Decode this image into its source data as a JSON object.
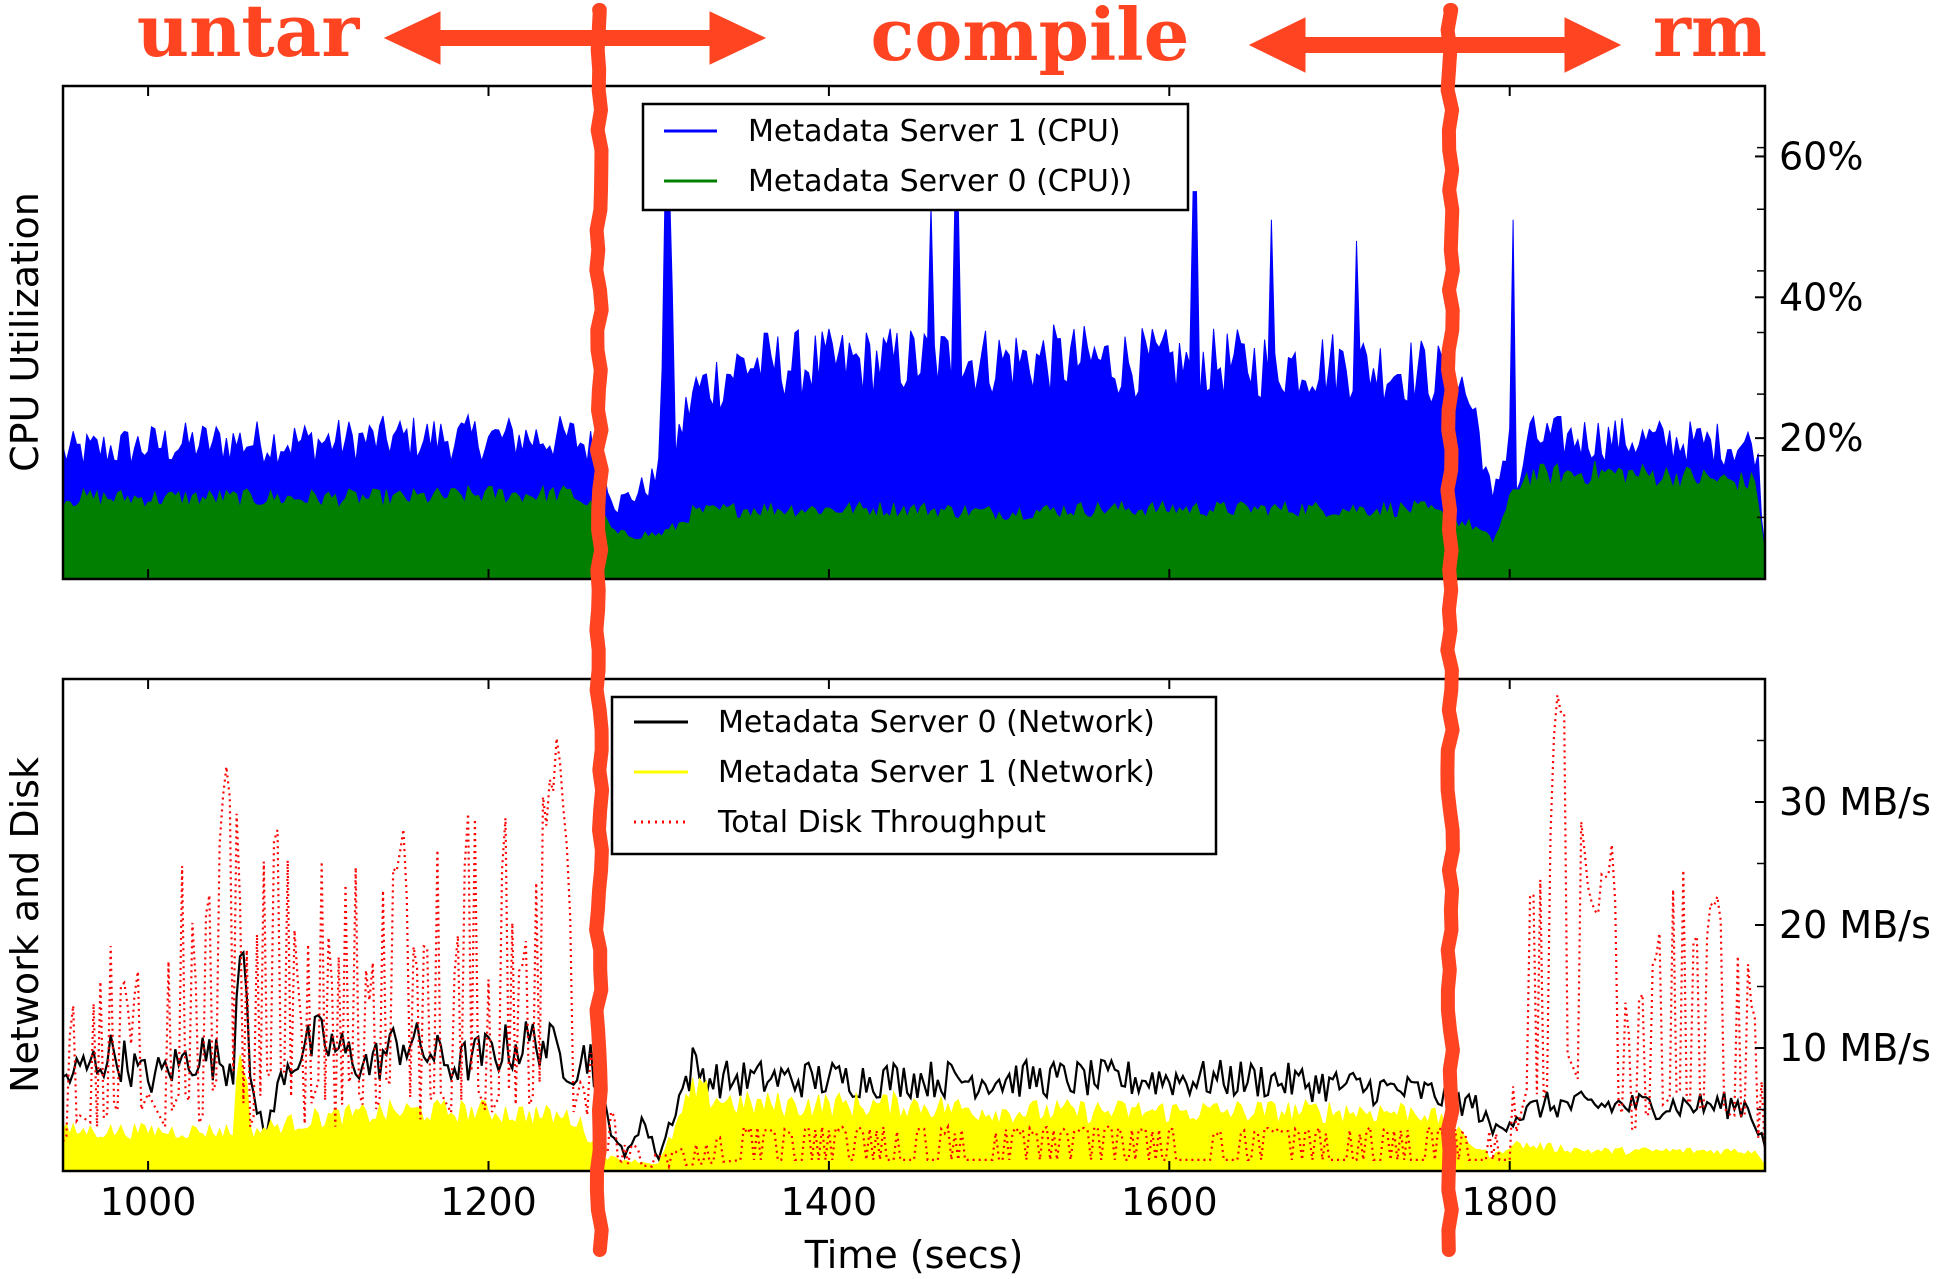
{
  "chart_data": [
    {
      "type": "area",
      "ylabel": "CPU Utilization",
      "xlim": [
        950,
        1950
      ],
      "ylim": [
        0,
        70
      ],
      "y_ticks": [
        20,
        40,
        60
      ],
      "y_tick_labels": [
        "20%",
        "40%",
        "60%"
      ],
      "y_tick_side": "right",
      "legend_position": "top-center",
      "series": [
        {
          "name": "Metadata Server 1 (CPU)",
          "color": "#0000ff",
          "points": [
            [
              950,
              17
            ],
            [
              1000,
              18
            ],
            [
              1050,
              18.5
            ],
            [
              1100,
              18.5
            ],
            [
              1150,
              19
            ],
            [
              1200,
              19
            ],
            [
              1250,
              19
            ],
            [
              1265,
              17
            ],
            [
              1275,
              10
            ],
            [
              1290,
              12
            ],
            [
              1300,
              14
            ],
            [
              1305,
              57
            ],
            [
              1310,
              18
            ],
            [
              1320,
              25
            ],
            [
              1350,
              29
            ],
            [
              1400,
              29
            ],
            [
              1450,
              29.5
            ],
            [
              1500,
              29.5
            ],
            [
              1550,
              29.5
            ],
            [
              1600,
              29
            ],
            [
              1650,
              29
            ],
            [
              1700,
              29
            ],
            [
              1750,
              28
            ],
            [
              1770,
              27
            ],
            [
              1780,
              22
            ],
            [
              1790,
              10
            ],
            [
              1800,
              20
            ],
            [
              1805,
              10
            ],
            [
              1810,
              19
            ],
            [
              1850,
              19
            ],
            [
              1900,
              18.5
            ],
            [
              1945,
              18
            ],
            [
              1950,
              4
            ]
          ],
          "peaks": [
            [
              1305,
              59
            ],
            [
              1460,
              53
            ],
            [
              1475,
              53
            ],
            [
              1615,
              55
            ],
            [
              1660,
              51
            ],
            [
              1710,
              48
            ],
            [
              1802,
              51
            ]
          ]
        },
        {
          "name": "Metadata Server 0 (CPU))",
          "color": "#007f00",
          "points": [
            [
              950,
              11
            ],
            [
              1000,
              11
            ],
            [
              1050,
              11
            ],
            [
              1100,
              11
            ],
            [
              1150,
              11
            ],
            [
              1200,
              11.5
            ],
            [
              1250,
              11.5
            ],
            [
              1265,
              9
            ],
            [
              1275,
              6
            ],
            [
              1300,
              6
            ],
            [
              1310,
              7
            ],
            [
              1320,
              9
            ],
            [
              1350,
              9.5
            ],
            [
              1400,
              9.5
            ],
            [
              1450,
              9.5
            ],
            [
              1500,
              9
            ],
            [
              1550,
              9.5
            ],
            [
              1600,
              9.5
            ],
            [
              1650,
              9.5
            ],
            [
              1700,
              9.5
            ],
            [
              1750,
              9.5
            ],
            [
              1780,
              7
            ],
            [
              1790,
              5
            ],
            [
              1805,
              13
            ],
            [
              1810,
              14
            ],
            [
              1850,
              14.5
            ],
            [
              1900,
              14
            ],
            [
              1945,
              13
            ],
            [
              1950,
              3
            ]
          ]
        }
      ]
    },
    {
      "type": "line",
      "xlabel": "Time (secs)",
      "ylabel": "Network and Disk",
      "xlim": [
        950,
        1950
      ],
      "ylim": [
        0,
        40
      ],
      "x_ticks": [
        1000,
        1200,
        1400,
        1600,
        1800
      ],
      "x_tick_labels": [
        "1000",
        "1200",
        "1400",
        "1600",
        "1800"
      ],
      "y_ticks": [
        10,
        20,
        30
      ],
      "y_tick_labels": [
        "10 MB/s",
        "20 MB/s",
        "30 MB/s"
      ],
      "y_tick_side": "right",
      "legend_position": "top-center",
      "series": [
        {
          "name": "Metadata Server 0 (Network)",
          "color": "#000000",
          "points": [
            [
              950,
              7
            ],
            [
              980,
              9
            ],
            [
              1000,
              7
            ],
            [
              1030,
              9
            ],
            [
              1050,
              8
            ],
            [
              1055,
              23
            ],
            [
              1060,
              6
            ],
            [
              1070,
              3
            ],
            [
              1080,
              8
            ],
            [
              1100,
              10
            ],
            [
              1130,
              8
            ],
            [
              1150,
              10
            ],
            [
              1180,
              8
            ],
            [
              1200,
              9
            ],
            [
              1230,
              10
            ],
            [
              1250,
              8
            ],
            [
              1260,
              9
            ],
            [
              1270,
              4
            ],
            [
              1280,
              1
            ],
            [
              1290,
              4
            ],
            [
              1300,
              1
            ],
            [
              1310,
              5
            ],
            [
              1320,
              8
            ],
            [
              1330,
              7
            ],
            [
              1350,
              7
            ],
            [
              1400,
              7
            ],
            [
              1450,
              7
            ],
            [
              1500,
              7
            ],
            [
              1550,
              7
            ],
            [
              1600,
              7
            ],
            [
              1650,
              7
            ],
            [
              1700,
              6.5
            ],
            [
              1750,
              6
            ],
            [
              1780,
              5
            ],
            [
              1790,
              3
            ],
            [
              1800,
              4
            ],
            [
              1820,
              5
            ],
            [
              1850,
              5
            ],
            [
              1900,
              5
            ],
            [
              1940,
              5
            ],
            [
              1950,
              2
            ]
          ]
        },
        {
          "name": "Metadata Server 1 (Network)",
          "color": "#ffff00",
          "points": [
            [
              950,
              3
            ],
            [
              1000,
              3
            ],
            [
              1050,
              3
            ],
            [
              1055,
              11
            ],
            [
              1060,
              3
            ],
            [
              1100,
              4
            ],
            [
              1150,
              4.5
            ],
            [
              1200,
              4.5
            ],
            [
              1250,
              4
            ],
            [
              1270,
              1
            ],
            [
              1300,
              0.5
            ],
            [
              1320,
              6
            ],
            [
              1350,
              5
            ],
            [
              1400,
              5
            ],
            [
              1450,
              5
            ],
            [
              1500,
              4.5
            ],
            [
              1550,
              4.5
            ],
            [
              1600,
              4.5
            ],
            [
              1650,
              4.5
            ],
            [
              1700,
              4.5
            ],
            [
              1750,
              4.5
            ],
            [
              1790,
              1
            ],
            [
              1800,
              2
            ],
            [
              1850,
              1.5
            ],
            [
              1900,
              1.5
            ],
            [
              1945,
              1.5
            ],
            [
              1950,
              0.5
            ]
          ]
        },
        {
          "name": "Total Disk Throughput",
          "color": "#ff0000",
          "points": [
            [
              950,
              8
            ],
            [
              960,
              15
            ],
            [
              970,
              12
            ],
            [
              980,
              18
            ],
            [
              990,
              10
            ],
            [
              1000,
              21
            ],
            [
              1010,
              12
            ],
            [
              1020,
              23
            ],
            [
              1030,
              13
            ],
            [
              1040,
              24
            ],
            [
              1048,
              30
            ],
            [
              1055,
              20
            ],
            [
              1060,
              12
            ],
            [
              1070,
              26
            ],
            [
              1080,
              27
            ],
            [
              1090,
              10
            ],
            [
              1100,
              24
            ],
            [
              1110,
              12
            ],
            [
              1120,
              27
            ],
            [
              1130,
              12
            ],
            [
              1140,
              24
            ],
            [
              1150,
              24
            ],
            [
              1160,
              14
            ],
            [
              1170,
              23
            ],
            [
              1180,
              14
            ],
            [
              1190,
              27
            ],
            [
              1200,
              14
            ],
            [
              1210,
              24
            ],
            [
              1220,
              14
            ],
            [
              1230,
              24
            ],
            [
              1240,
              32
            ],
            [
              1250,
              16
            ],
            [
              1255,
              26
            ],
            [
              1260,
              8
            ],
            [
              1280,
              2
            ],
            [
              1300,
              1
            ],
            [
              1350,
              3
            ],
            [
              1400,
              3
            ],
            [
              1450,
              3
            ],
            [
              1500,
              3
            ],
            [
              1550,
              3
            ],
            [
              1600,
              3
            ],
            [
              1650,
              3
            ],
            [
              1700,
              3
            ],
            [
              1750,
              3
            ],
            [
              1800,
              3
            ],
            [
              1810,
              22
            ],
            [
              1820,
              20
            ],
            [
              1830,
              36
            ],
            [
              1840,
              25
            ],
            [
              1850,
              20
            ],
            [
              1860,
              24
            ],
            [
              1870,
              10
            ],
            [
              1880,
              15
            ],
            [
              1890,
              18
            ],
            [
              1900,
              22
            ],
            [
              1910,
              16
            ],
            [
              1920,
              20
            ],
            [
              1930,
              15
            ],
            [
              1940,
              15
            ],
            [
              1950,
              5
            ]
          ]
        }
      ]
    }
  ],
  "annotations": {
    "phases": [
      {
        "label": "untar"
      },
      {
        "label": "compile"
      },
      {
        "label": "rm"
      }
    ],
    "color": "#ff4422",
    "divider_times": [
      1265,
      1765
    ]
  }
}
